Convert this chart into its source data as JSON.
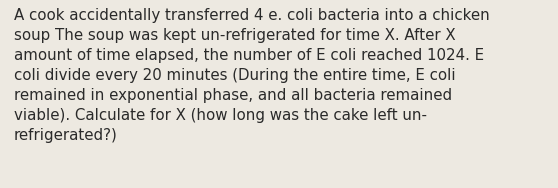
{
  "text": "A cook accidentally transferred 4 e. coli bacteria into a chicken\nsoup The soup was kept un-refrigerated for time X. After X\namount of time elapsed, the number of E coli reached 1024. E\ncoli divide every 20 minutes (During the entire time, E coli\nremained in exponential phase, and all bacteria remained\nviable). Calculate for X (how long was the cake left un-\nrefrigerated?)",
  "background_color": "#ede9e1",
  "text_color": "#2a2a2a",
  "font_size": 10.8,
  "fig_width": 5.58,
  "fig_height": 1.88,
  "dpi": 100
}
